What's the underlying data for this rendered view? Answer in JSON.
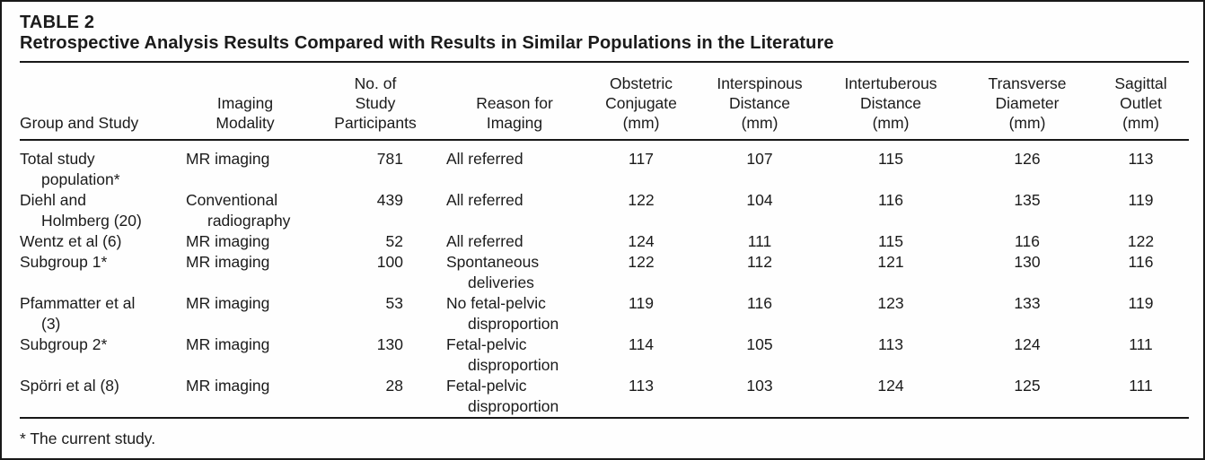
{
  "title": {
    "label": "TABLE 2",
    "text": "Retrospective Analysis Results Compared with Results in Similar Populations in the Literature"
  },
  "table": {
    "columns": [
      {
        "id": "group-and-study",
        "label": "Group and Study"
      },
      {
        "id": "imaging-modality",
        "label": "Imaging\nModality"
      },
      {
        "id": "no-of-study-participants",
        "label": "No. of\nStudy\nParticipants"
      },
      {
        "id": "reason-for-imaging",
        "label": "Reason for\nImaging"
      },
      {
        "id": "obstetric-conjugate",
        "label": "Obstetric\nConjugate\n(mm)"
      },
      {
        "id": "interspinous-distance",
        "label": "Interspinous\nDistance\n(mm)"
      },
      {
        "id": "intertuberous-distance",
        "label": "Intertuberous\nDistance\n(mm)"
      },
      {
        "id": "transverse-diameter",
        "label": "Transverse\nDiameter\n(mm)"
      },
      {
        "id": "sagittal-outlet",
        "label": "Sagittal\nOutlet\n(mm)"
      }
    ],
    "rows": [
      {
        "cells": [
          "Total study\npopulation*",
          "MR imaging",
          "781",
          "All referred",
          "117",
          "107",
          "115",
          "126",
          "113"
        ]
      },
      {
        "cells": [
          "Diehl and\nHolmberg (20)",
          "Conventional\nradiography",
          "439",
          "All referred",
          "122",
          "104",
          "116",
          "135",
          "119"
        ]
      },
      {
        "cells": [
          "Wentz et al (6)",
          "MR imaging",
          "52",
          "All referred",
          "124",
          "111",
          "115",
          "116",
          "122"
        ]
      },
      {
        "cells": [
          "Subgroup 1*",
          "MR imaging",
          "100",
          "Spontaneous\ndeliveries",
          "122",
          "112",
          "121",
          "130",
          "116"
        ]
      },
      {
        "cells": [
          "Pfammatter et al\n(3)",
          "MR imaging",
          "53",
          "No fetal-pelvic\ndisproportion",
          "119",
          "116",
          "123",
          "133",
          "119"
        ]
      },
      {
        "cells": [
          "Subgroup 2*",
          "MR imaging",
          "130",
          "Fetal-pelvic\ndisproportion",
          "114",
          "105",
          "113",
          "124",
          "111"
        ]
      },
      {
        "cells": [
          "Spörri et al (8)",
          "MR imaging",
          "28",
          "Fetal-pelvic\ndisproportion",
          "113",
          "103",
          "124",
          "125",
          "111"
        ]
      }
    ]
  },
  "footnote": "* The current study.",
  "colors": {
    "text": "#1b1b1b",
    "border": "#181818",
    "background": "#fefefe"
  }
}
